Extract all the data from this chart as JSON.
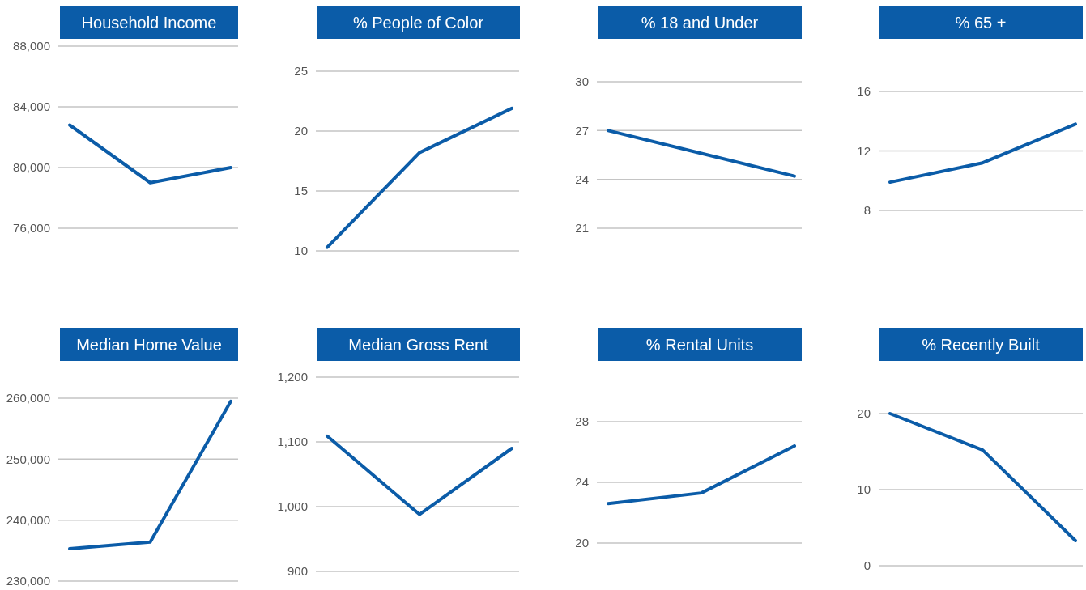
{
  "chart_data": [
    {
      "type": "line",
      "title": "Household Income",
      "categories": [
        null,
        null,
        null
      ],
      "series": [
        {
          "color": "#0b5ca8",
          "values": [
            82800,
            79000,
            80000
          ]
        }
      ],
      "ylim": [
        76000,
        88000
      ],
      "yticks": [
        {
          "value": 76000,
          "label": "76,000"
        },
        {
          "value": 80000,
          "label": "80,000"
        },
        {
          "value": 84000,
          "label": "84,000"
        },
        {
          "value": 88000,
          "label": "88,000"
        }
      ],
      "grid": "y",
      "tick_labels": "y"
    },
    {
      "type": "line",
      "title": "% People of Color",
      "categories": [
        null,
        null,
        null
      ],
      "series": [
        {
          "color": "#0b5ca8",
          "values": [
            10.3,
            18.2,
            21.9
          ]
        }
      ],
      "ylim": [
        10,
        25
      ],
      "yticks": [
        10,
        15,
        20,
        25
      ],
      "grid": "y",
      "tick_labels": "y"
    },
    {
      "type": "line",
      "title": "% 18 and Under",
      "categories": [
        null,
        null,
        null
      ],
      "series": [
        {
          "color": "#0b5ca8",
          "values": [
            27.0,
            25.6,
            24.2
          ]
        }
      ],
      "ylim": [
        21,
        30
      ],
      "yticks": [
        21,
        24,
        27,
        30
      ],
      "grid": "y",
      "tick_labels": "y"
    },
    {
      "type": "line",
      "title": "% 65 +",
      "categories": [
        null,
        null,
        null
      ],
      "series": [
        {
          "color": "#0b5ca8",
          "values": [
            9.9,
            11.2,
            13.8
          ]
        }
      ],
      "ylim": [
        8,
        16
      ],
      "yticks": [
        8,
        12,
        16
      ],
      "grid": "y",
      "tick_labels": "y"
    },
    {
      "type": "line",
      "title": "Median Home Value",
      "categories": [
        null,
        null,
        null
      ],
      "series": [
        {
          "color": "#0b5ca8",
          "values": [
            235300,
            236400,
            259500
          ]
        }
      ],
      "ylim": [
        230000,
        260000
      ],
      "yticks": [
        {
          "value": 230000,
          "label": "230,000"
        },
        {
          "value": 240000,
          "label": "240,000"
        },
        {
          "value": 250000,
          "label": "250,000"
        },
        {
          "value": 260000,
          "label": "260,000"
        }
      ],
      "grid": "y",
      "tick_labels": "y"
    },
    {
      "type": "line",
      "title": "Median Gross Rent",
      "categories": [
        null,
        null,
        null
      ],
      "series": [
        {
          "color": "#0b5ca8",
          "values": [
            1109,
            988,
            1090
          ]
        }
      ],
      "ylim": [
        900,
        1200
      ],
      "yticks": [
        {
          "value": 900,
          "label": "900"
        },
        {
          "value": 1000,
          "label": "1,000"
        },
        {
          "value": 1100,
          "label": "1,100"
        },
        {
          "value": 1200,
          "label": "1,200"
        }
      ],
      "grid": "y",
      "tick_labels": "y"
    },
    {
      "type": "line",
      "title": "% Rental Units",
      "categories": [
        null,
        null,
        null
      ],
      "series": [
        {
          "color": "#0b5ca8",
          "values": [
            22.6,
            23.3,
            26.4
          ]
        }
      ],
      "ylim": [
        20,
        28
      ],
      "yticks": [
        20,
        24,
        28
      ],
      "grid": "y",
      "tick_labels": "y"
    },
    {
      "type": "line",
      "title": "% Recently Built",
      "categories": [
        null,
        null,
        null
      ],
      "series": [
        {
          "color": "#0b5ca8",
          "values": [
            20,
            15.2,
            3.3
          ]
        }
      ],
      "ylim": [
        0,
        20
      ],
      "yticks": [
        0,
        10,
        20
      ],
      "grid": "y",
      "tick_labels": "y"
    }
  ]
}
